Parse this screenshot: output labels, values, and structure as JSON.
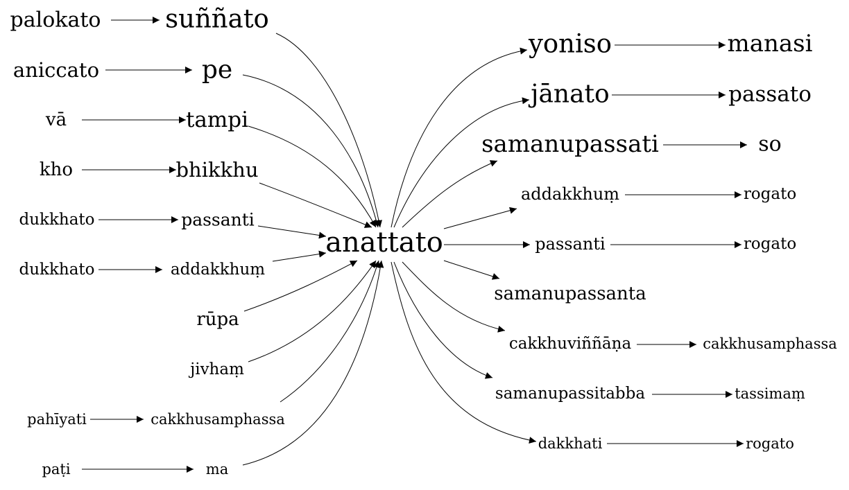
{
  "colors": {
    "background": "#ffffff",
    "ink": "#000000"
  },
  "center": "anattato",
  "left": [
    {
      "pair": "palokato",
      "word": "suññato"
    },
    {
      "pair": "aniccato",
      "word": "pe"
    },
    {
      "pair": "vā",
      "word": "tampi"
    },
    {
      "pair": "kho",
      "word": "bhikkhu"
    },
    {
      "pair": "dukkhato",
      "word": "passanti"
    },
    {
      "pair": "dukkhato",
      "word": "addakkhuṃ"
    },
    {
      "pair": "",
      "word": "rūpa"
    },
    {
      "pair": "",
      "word": "jivhaṃ"
    },
    {
      "pair": "pahīyati",
      "word": "cakkhusamphassa"
    },
    {
      "pair": "paṭi",
      "word": "ma"
    }
  ],
  "right": [
    {
      "word": "yoniso",
      "pair": "manasi"
    },
    {
      "word": "jānato",
      "pair": "passato"
    },
    {
      "word": "samanupassati",
      "pair": "so"
    },
    {
      "word": "addakkhuṃ",
      "pair": "rogato"
    },
    {
      "word": "passanti",
      "pair": "rogato"
    },
    {
      "word": "samanupassanta",
      "pair": ""
    },
    {
      "word": "cakkhuviññāṇa",
      "pair": "cakkhusamphassa"
    },
    {
      "word": "samanupassitabba",
      "pair": "tassimaṃ"
    },
    {
      "word": "dakkhati",
      "pair": "rogato"
    }
  ]
}
